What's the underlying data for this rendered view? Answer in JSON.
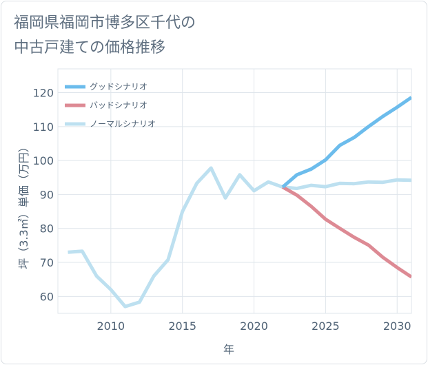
{
  "chart_data": {
    "type": "line",
    "title": "福岡県福岡市博多区千代の\n中古戸建ての価格推移",
    "xlabel": "年",
    "ylabel": "坪（3.3㎡）単価（万円）",
    "xlim": [
      2006.3,
      2031
    ],
    "ylim": [
      55,
      127
    ],
    "x_ticks": [
      2010,
      2015,
      2020,
      2025,
      2030
    ],
    "y_ticks": [
      60,
      70,
      80,
      90,
      100,
      110,
      120
    ],
    "grid": true,
    "legend_position": "top-left",
    "series": [
      {
        "name": "グッドシナリオ",
        "color": "#6cbcec",
        "x": [
          2022,
          2023,
          2024,
          2025,
          2026,
          2027,
          2028,
          2029,
          2030,
          2031
        ],
        "y": [
          92.2,
          95.8,
          97.5,
          100.2,
          104.5,
          106.8,
          110.0,
          113.0,
          115.7,
          118.6
        ]
      },
      {
        "name": "バッドシナリオ",
        "color": "#dd8a94",
        "x": [
          2022,
          2023,
          2024,
          2025,
          2026,
          2027,
          2028,
          2029,
          2030,
          2031
        ],
        "y": [
          92.2,
          89.8,
          86.5,
          82.7,
          80.0,
          77.4,
          75.1,
          71.5,
          68.5,
          65.7
        ]
      },
      {
        "name": "ノーマルシナリオ",
        "color": "#bde0f0",
        "x": [
          2007,
          2008,
          2009,
          2010,
          2011,
          2012,
          2013,
          2014,
          2015,
          2016,
          2017,
          2018,
          2019,
          2020,
          2021,
          2022,
          2023,
          2024,
          2025,
          2026,
          2027,
          2028,
          2029,
          2030,
          2031
        ],
        "y": [
          73.0,
          73.3,
          66.0,
          62.0,
          57.0,
          58.3,
          66.0,
          70.8,
          85.0,
          93.3,
          97.8,
          89.0,
          95.8,
          91.1,
          93.7,
          92.2,
          91.8,
          92.7,
          92.3,
          93.3,
          93.2,
          93.7,
          93.6,
          94.3,
          94.2
        ]
      }
    ]
  }
}
